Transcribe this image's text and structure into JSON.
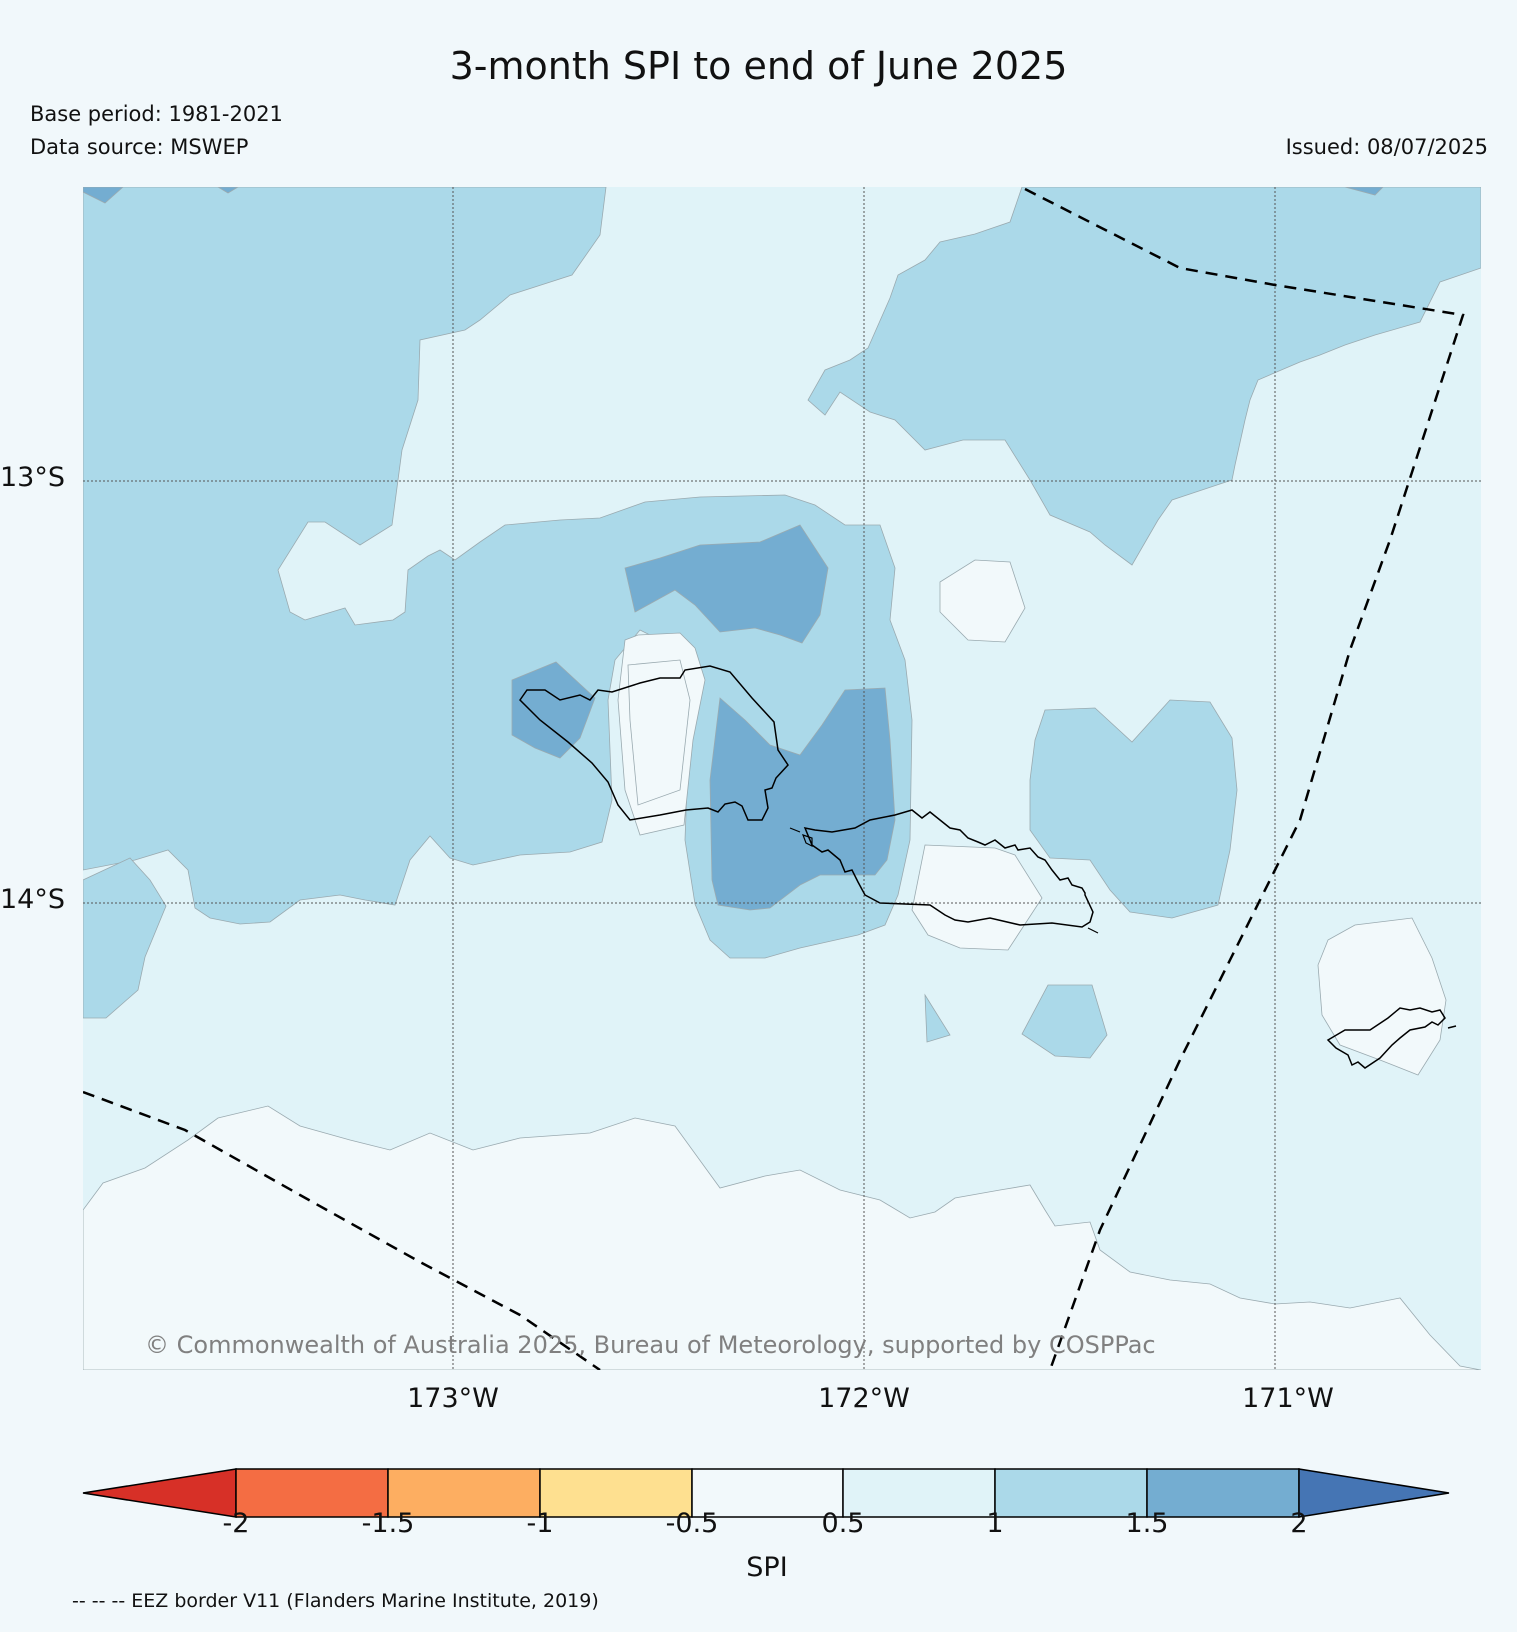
{
  "title": "3-month SPI to end of June 2025",
  "base_period": "Base period: 1981-2021",
  "data_source": "Data source: MSWEP",
  "issued": "Issued: 08/07/2025",
  "map": {
    "lat_labels": [
      "13°S",
      "14°S"
    ],
    "lon_labels": [
      "173°W",
      "172°W",
      "171°W"
    ],
    "copyright": "© Commonwealth of Australia 2025, Bureau of Meteorology, supported by COSPPac",
    "eez_note": "-- -- -- EEZ border V11 (Flanders Marine Institute, 2019)"
  },
  "colorbar": {
    "label": "SPI",
    "ticks": [
      "-2",
      "-1.5",
      "-1",
      "-0.5",
      "0.5",
      "1",
      "1.5",
      "2"
    ],
    "colors": {
      "below_-2": "#d73027",
      "-2_to_-1.5": "#f46d43",
      "-1.5_to_-1": "#fdae61",
      "-1_to_-0.5": "#fee090",
      "-0.5_to_0.5": "#f2f9fb",
      "0.5_to_1": "#e0f3f8",
      "1_to_1.5": "#abd9e9",
      "1.5_to_2": "#74add1",
      "above_2": "#4575b4"
    }
  }
}
